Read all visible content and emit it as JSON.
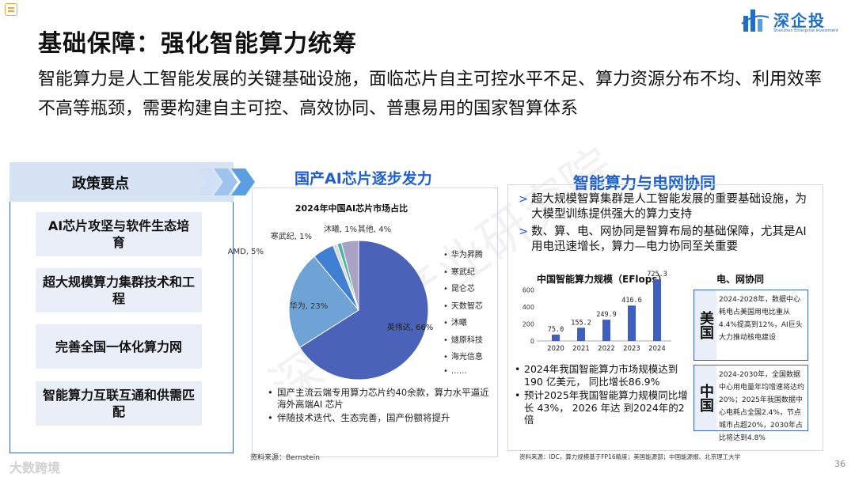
{
  "header": {
    "title": "基础保障：强化智能算力统筹",
    "subtitle": "智能算力是人工智能发展的关键基础设施，面临芯片自主可控水平不足、算力资源分布不均、利用效率不高等瓶颈，需要构建自主可控、高效协同、普惠易用的国家智算体系"
  },
  "logo": {
    "name": "深企投",
    "sub": "Shenzhen Enterprise Investment"
  },
  "watermark": "深企投产业研究院",
  "policy": {
    "heading": "政策要点",
    "items": [
      "AI芯片攻坚与软件生态培育",
      "超大规模算力集群技术和工程",
      "完善全国一体化算力网",
      "智能算力互联互通和供需匹配"
    ]
  },
  "chips": {
    "heading": "国产AI芯片逐步发力",
    "source": "资料来源：Bernstein",
    "bullets": [
      "国产主流云端专用算力芯片约40余款，算力水平逼近海外高端AI 芯片",
      "伴随技术迭代、生态完善，国产份额将提升"
    ],
    "legend": [
      "华为昇腾",
      "寒武纪",
      "昆仑芯",
      "天数智芯",
      "沐曦",
      "燧原科技",
      "海光信息",
      "……"
    ]
  },
  "grid": {
    "heading": "智能算力与电网协同",
    "bullets": [
      "超大规模智算集群是人工智能发展的重要基础设施，为大模型训练提供强大的算力支持",
      "数、算、电、网协同是智算布局的基础保障，尤其是AI用电迅速增长，算力—电力协同至关重要"
    ],
    "compute_bullets": [
      "2024年我国智能算力市场规模达到 190 亿美元， 同比增长86.9%",
      "预计2025年我国智能算力规模同比增长 43%， 2026 年达 到2024年的2倍"
    ],
    "coordination_heading": "电、网协同",
    "regions": [
      {
        "name": "美国",
        "text": "2024-2028年，数据中心耗电占美国用电比重从4.4%提高到12%，AI巨头大力推动核电建设"
      },
      {
        "name": "中国",
        "text": "2024-2030年，全国数据中心用电量年均增速将达约20%；2025年我国数据中心电耗占全国2.4%，节点城市占超20%，2030年占比将达到4.8%"
      }
    ],
    "source": "资料来源：IDC，算力规模基于FP16精度；美国能源部；中国能源报、北京理工大学"
  },
  "footer": {
    "brand": "大数跨境",
    "page": "36"
  },
  "colors": {
    "accent": "#1f5fd0",
    "border": "#3f63c8",
    "panel": "#e9eef8"
  },
  "chart_data": [
    {
      "type": "pie",
      "title": "2024年中国AI芯片市场占比",
      "slices": [
        {
          "label": "英伟达, 66%",
          "value": 66,
          "color": "#4a62b8"
        },
        {
          "label": "华为, 23%",
          "value": 23,
          "color": "#6fa3d6"
        },
        {
          "label": "AMD, 5%",
          "value": 5,
          "color": "#3f7fd4"
        },
        {
          "label": "寒武纪, 1%",
          "value": 1,
          "color": "#d9d9d9"
        },
        {
          "label": "沐曦, 1%",
          "value": 1,
          "color": "#4bb6a0"
        },
        {
          "label": "其他, 4%",
          "value": 4,
          "color": "#a8a2c4"
        }
      ]
    },
    {
      "type": "bar",
      "title": "中国智能算力规模（EFlops）",
      "categories": [
        "2020",
        "2021",
        "2022",
        "2023",
        "2024"
      ],
      "values": [
        75.0,
        155.2,
        249.9,
        416.6,
        725.3
      ],
      "value_labels": [
        "75.0",
        "155.2",
        "249.9",
        "416.6",
        "725.3"
      ],
      "y_ticks": [
        "0",
        "200",
        "400",
        "600"
      ],
      "ylim": [
        0,
        800
      ],
      "color": "#3f5fc0"
    }
  ]
}
